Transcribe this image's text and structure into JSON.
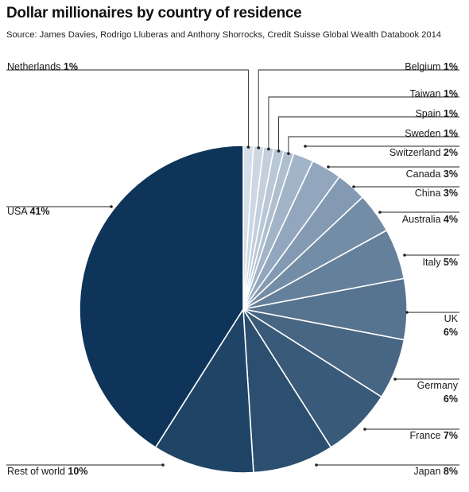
{
  "title": "Dollar millionaires by country of residence",
  "source": "Source: James Davies, Rodrigo Lluberas and Anthony Shorrocks, Credit Suisse Global Wealth Databook 2014",
  "chart_data": {
    "type": "pie",
    "title": "Dollar millionaires by country of residence",
    "start": "12 o'clock, clockwise",
    "slices": [
      {
        "label": "Netherlands",
        "value": 1,
        "value_label": "1%",
        "color": "#d6dfe8"
      },
      {
        "label": "Belgium",
        "value": 1,
        "value_label": "1%",
        "color": "#cdd7e2"
      },
      {
        "label": "Taiwan",
        "value": 1,
        "value_label": "1%",
        "color": "#c3cfdc"
      },
      {
        "label": "Spain",
        "value": 1,
        "value_label": "1%",
        "color": "#b9c7d6"
      },
      {
        "label": "Sweden",
        "value": 1,
        "value_label": "1%",
        "color": "#afbfd0"
      },
      {
        "label": "Switzerland",
        "value": 2,
        "value_label": "2%",
        "color": "#a2b4c8"
      },
      {
        "label": "Canada",
        "value": 3,
        "value_label": "3%",
        "color": "#92a7bd"
      },
      {
        "label": "China",
        "value": 3,
        "value_label": "3%",
        "color": "#839ab2"
      },
      {
        "label": "Australia",
        "value": 4,
        "value_label": "4%",
        "color": "#748da6"
      },
      {
        "label": "Italy",
        "value": 5,
        "value_label": "5%",
        "color": "#65809b"
      },
      {
        "label": "UK",
        "value": 6,
        "value_label": "6%",
        "color": "#56738f"
      },
      {
        "label": "Germany",
        "value": 6,
        "value_label": "6%",
        "color": "#476683"
      },
      {
        "label": "France",
        "value": 7,
        "value_label": "7%",
        "color": "#395a78"
      },
      {
        "label": "Japan",
        "value": 8,
        "value_label": "8%",
        "color": "#2c4f6f"
      },
      {
        "label": "Rest of world",
        "value": 10,
        "value_label": "10%",
        "color": "#1f4466"
      },
      {
        "label": "USA",
        "value": 41,
        "value_label": "41%",
        "color": "#0e3459"
      }
    ]
  }
}
